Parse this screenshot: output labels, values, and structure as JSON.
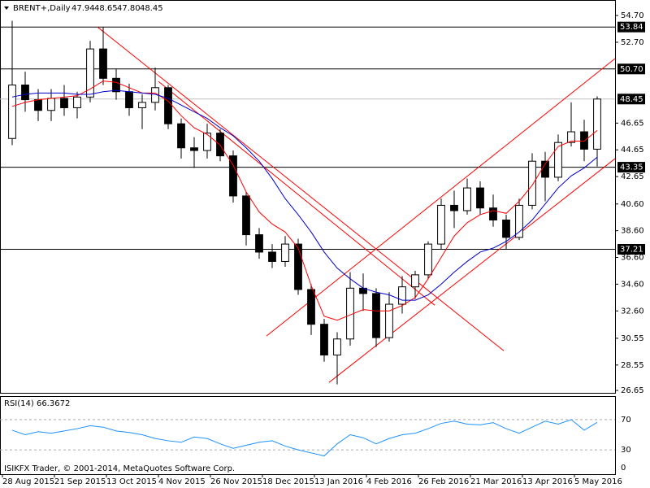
{
  "chart_data": {
    "type": "candlestick",
    "title": "BRENT+,Daily",
    "header_ohlc": [
      "47.94",
      "48.65",
      "47.80",
      "48.45"
    ],
    "footer": "ISIKFX Trader, © 2001-2014, MetaQuotes Software Corp.",
    "x": [
      3,
      7,
      11,
      15,
      19,
      23,
      27,
      31,
      35,
      39,
      43,
      47,
      51,
      55,
      59,
      63,
      67,
      71,
      75,
      79,
      83,
      87,
      91,
      95,
      99,
      103,
      107,
      111,
      115,
      119,
      123,
      127,
      131,
      135,
      139,
      143,
      147,
      151,
      155,
      159,
      163,
      167,
      171,
      175,
      179,
      183
    ],
    "open": [
      45.5,
      49.5,
      48.4,
      47.6,
      48.5,
      47.8,
      48.6,
      52.2,
      50.0,
      49.0,
      47.8,
      48.2,
      49.3,
      46.6,
      44.8,
      44.6,
      45.9,
      44.2,
      41.2,
      38.3,
      37.0,
      36.3,
      37.6,
      34.2,
      31.6,
      29.3,
      30.5,
      34.3,
      33.9,
      30.6,
      33.1,
      34.4,
      35.3,
      37.6,
      40.5,
      40.1,
      41.8,
      40.3,
      39.4,
      38.1,
      40.5,
      43.8,
      42.6,
      45.2,
      46.0,
      44.7
    ],
    "high": [
      54.3,
      50.5,
      49.2,
      49.2,
      49.5,
      49.0,
      52.8,
      53.84,
      50.7,
      49.6,
      48.8,
      50.8,
      49.5,
      47.0,
      45.6,
      46.6,
      46.2,
      44.6,
      41.5,
      38.8,
      37.6,
      38.2,
      38.0,
      34.6,
      32.0,
      31.0,
      35.5,
      35.4,
      34.3,
      34.0,
      35.2,
      35.6,
      37.8,
      41.0,
      41.6,
      42.5,
      42.3,
      41.3,
      39.8,
      41.0,
      44.4,
      44.5,
      45.8,
      48.2,
      46.9,
      48.65
    ],
    "low": [
      45.0,
      47.5,
      46.8,
      46.8,
      47.2,
      47.0,
      48.2,
      49.5,
      48.4,
      47.2,
      46.2,
      47.6,
      46.2,
      44.0,
      43.3,
      44.0,
      43.8,
      40.7,
      37.5,
      36.5,
      35.8,
      35.9,
      33.8,
      30.8,
      28.8,
      27.1,
      30.0,
      32.6,
      29.9,
      30.3,
      32.4,
      33.5,
      35.0,
      37.2,
      38.8,
      39.8,
      39.8,
      38.9,
      37.2,
      37.9,
      40.2,
      40.8,
      42.3,
      44.9,
      43.8,
      43.4
    ],
    "close": [
      49.5,
      48.4,
      47.6,
      48.5,
      47.8,
      48.6,
      52.2,
      50.0,
      49.0,
      47.8,
      48.2,
      49.3,
      46.6,
      44.8,
      44.6,
      45.9,
      44.2,
      41.2,
      38.3,
      37.0,
      36.3,
      37.6,
      34.2,
      31.6,
      29.3,
      30.5,
      34.3,
      33.9,
      30.6,
      33.1,
      34.4,
      35.3,
      37.6,
      40.5,
      40.1,
      41.8,
      40.3,
      39.4,
      38.1,
      40.5,
      43.8,
      42.6,
      45.2,
      46.0,
      44.7,
      48.45
    ],
    "series": [
      {
        "color": "#ff0000",
        "values": [
          47.9,
          48.2,
          48.4,
          48.5,
          48.6,
          48.7,
          49.2,
          49.8,
          49.7,
          49.3,
          48.9,
          48.9,
          48.3,
          47.2,
          46.3,
          45.8,
          45.0,
          43.5,
          41.5,
          40.0,
          39.1,
          38.5,
          37.3,
          34.5,
          32.2,
          31.9,
          32.3,
          32.7,
          32.6,
          32.6,
          33.0,
          33.6,
          35.0,
          36.6,
          38.2,
          39.2,
          39.8,
          40.1,
          39.9,
          40.8,
          42.0,
          43.6,
          44.9,
          45.3,
          45.3,
          46.1
        ]
      },
      {
        "color": "#0000cc",
        "values": [
          48.6,
          48.8,
          48.9,
          48.9,
          48.9,
          48.8,
          48.8,
          49.0,
          49.1,
          49.0,
          48.9,
          48.8,
          48.5,
          48.0,
          47.5,
          47.0,
          46.3,
          45.7,
          44.8,
          43.8,
          42.5,
          41.0,
          39.8,
          38.5,
          37.0,
          35.8,
          35.0,
          34.3,
          34.0,
          33.8,
          33.4,
          33.4,
          33.8,
          34.6,
          35.5,
          36.3,
          37.0,
          37.3,
          37.8,
          38.5,
          39.4,
          40.6,
          41.8,
          42.7,
          43.3,
          44.1
        ]
      }
    ],
    "trendlines": [
      {
        "color": "#ff0000",
        "x": [
          29.25,
          154.25
        ],
        "y": [
          53.84,
          29.62
        ]
      },
      {
        "color": "#ff0000",
        "x": [
          48,
          133
        ],
        "y": [
          49.77,
          33.03
        ]
      },
      {
        "color": "#ff0000",
        "x": [
          81.25,
          188.5
        ],
        "y": [
          30.72,
          51.48
        ]
      },
      {
        "color": "#ff0000",
        "x": [
          100.5,
          188.5
        ],
        "y": [
          27.25,
          43.99
        ]
      }
    ],
    "levels": [
      53.84,
      {
        "value": 50.7,
        "label": "50.70"
      },
      48.45,
      43.35,
      37.21
    ],
    "current_level": 2,
    "xlim": [
      -0.75,
      188.5
    ],
    "ylim": [
      26.47,
      55.86
    ],
    "yticks": [
      {
        "value": 54.7,
        "label": "54.70"
      },
      {
        "value": 52.7,
        "label": "52.70"
      },
      46.65,
      44.65,
      42.65,
      {
        "value": 40.6,
        "label": "40.60"
      },
      {
        "value": 38.6,
        "label": "38.60"
      },
      {
        "value": 36.6,
        "label": "36.60"
      },
      {
        "value": 34.6,
        "label": "34.60"
      },
      {
        "value": 32.6,
        "label": "32.60"
      },
      30.55,
      28.55,
      26.65
    ],
    "xticks": [
      {
        "value": 0,
        "label": "28 Aug 2015"
      },
      {
        "value": 16,
        "label": "21 Sep 2015"
      },
      {
        "value": 32,
        "label": "13 Oct 2015"
      },
      {
        "value": 48,
        "label": "4 Nov 2015"
      },
      {
        "value": 64,
        "label": "26 Nov 2015"
      },
      {
        "value": 80,
        "label": "18 Dec 2015"
      },
      {
        "value": 96,
        "label": "13 Jan 2016"
      },
      {
        "value": 112,
        "label": "4 Feb 2016"
      },
      {
        "value": 128,
        "label": "26 Feb 2016"
      },
      {
        "value": 144,
        "label": "21 Mar 2016"
      },
      {
        "value": 160,
        "label": "13 Apr 2016"
      },
      {
        "value": 176,
        "label": "5 May 2016"
      }
    ],
    "rsi": {
      "title": "RSI(14) 66.3672",
      "color": "#1e90ff",
      "values": [
        56,
        50,
        54,
        52,
        55,
        58,
        62,
        60,
        55,
        53,
        50,
        45,
        42,
        40,
        47,
        45,
        38,
        32,
        36,
        40,
        42,
        35,
        30,
        26,
        22,
        38,
        50,
        46,
        38,
        45,
        50,
        52,
        58,
        65,
        68,
        64,
        63,
        66,
        58,
        52,
        60,
        68,
        64,
        70,
        56,
        66.36
      ],
      "ylim": [
        0,
        100
      ],
      "yticks": [
        70,
        30,
        0
      ]
    }
  }
}
